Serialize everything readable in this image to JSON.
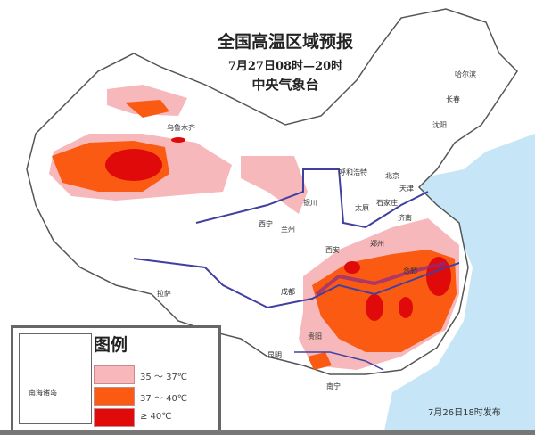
{
  "title": "全国高温区域预报",
  "time_range": "7月27日08时—20时",
  "issuer": "中央气象台",
  "issued_note": "7月26日18时发布",
  "legend": {
    "title": "图例",
    "inset_label": "南海诸岛",
    "items": [
      {
        "label": "35 ～ 37℃",
        "color": "#f7b8bb"
      },
      {
        "label": "37 ～ 40℃",
        "color": "#fa5a12"
      },
      {
        "label": "≥ 40℃",
        "color": "#e00a0a"
      }
    ]
  },
  "colors": {
    "sea": "#c6e6f7",
    "river": "#4040a0",
    "border": "#666666"
  },
  "cities": [
    "乌鲁木齐",
    "呼和浩特",
    "北京",
    "天津",
    "石家庄",
    "太原",
    "济南",
    "银川",
    "西宁",
    "兰州",
    "西安",
    "郑州",
    "合肥",
    "成都",
    "贵阳",
    "昆明",
    "南宁",
    "拉萨",
    "沈阳",
    "长春",
    "哈尔滨"
  ]
}
